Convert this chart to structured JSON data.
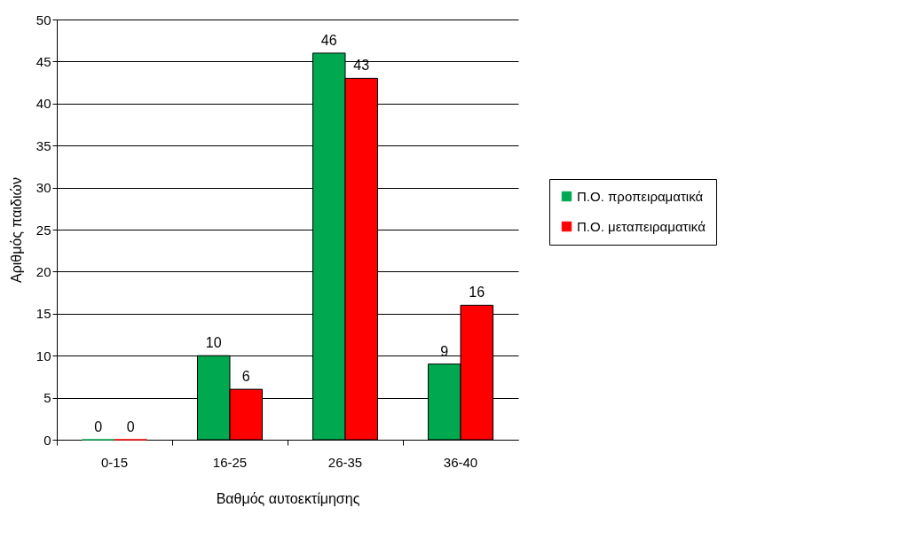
{
  "chart_data": {
    "type": "bar",
    "xlabel": "Βαθμός αυτοεκτίμησης",
    "ylabel": "Αριθμός παιδιών",
    "categories": [
      "0-15",
      "16-25",
      "26-35",
      "36-40"
    ],
    "series": [
      {
        "name": "Π.Ο. προπειραματικά",
        "color": "#00a850",
        "values": [
          0,
          10,
          46,
          9
        ]
      },
      {
        "name": "Π.Ο. μεταπειραματικά",
        "color": "#ff0000",
        "values": [
          0,
          6,
          43,
          16
        ]
      }
    ],
    "ylim": [
      0,
      50
    ],
    "yticks": [
      0,
      5,
      10,
      15,
      20,
      25,
      30,
      35,
      40,
      45,
      50
    ],
    "grid": "y",
    "legend": "right",
    "data_labels": true
  }
}
